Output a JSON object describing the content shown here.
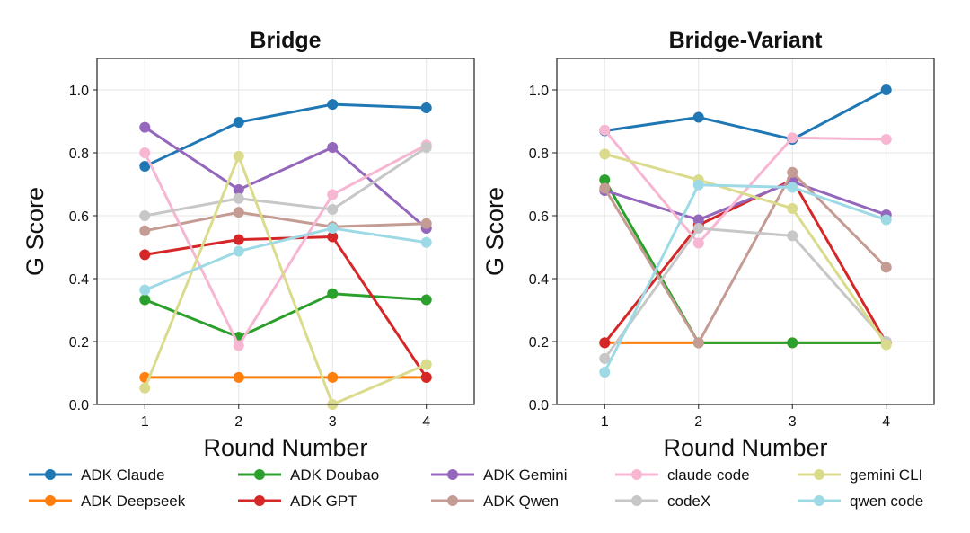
{
  "chart_data": [
    {
      "type": "line",
      "title": "Bridge",
      "xlabel": "Round Number",
      "ylabel": "G Score",
      "x": [
        1,
        2,
        3,
        4
      ],
      "xticks": [
        "1",
        "2",
        "3",
        "4"
      ],
      "yticks": [
        "0.0",
        "0.2",
        "0.4",
        "0.6",
        "0.8",
        "1.0"
      ],
      "xlim": [
        0.49,
        4.51
      ],
      "ylim": [
        0,
        1.1
      ],
      "grid": true,
      "series": [
        {
          "name": "ADK Claude",
          "color": "#1f77b4",
          "values": [
            0.757,
            0.897,
            0.954,
            0.943
          ]
        },
        {
          "name": "ADK Deepseek",
          "color": "#ff7f0e",
          "values": [
            0.086,
            0.086,
            0.086,
            0.086
          ]
        },
        {
          "name": "ADK Doubao",
          "color": "#2ca02c",
          "values": [
            0.333,
            0.214,
            0.352,
            0.333
          ]
        },
        {
          "name": "ADK GPT",
          "color": "#d62728",
          "values": [
            0.476,
            0.524,
            0.533,
            0.086
          ]
        },
        {
          "name": "ADK Gemini",
          "color": "#9467bd",
          "values": [
            0.881,
            0.683,
            0.817,
            0.56
          ]
        },
        {
          "name": "ADK Qwen",
          "color": "#c49c94",
          "values": [
            0.552,
            0.611,
            0.565,
            0.575
          ]
        },
        {
          "name": "claude code",
          "color": "#f7b6d2",
          "values": [
            0.8,
            0.187,
            0.667,
            0.825
          ]
        },
        {
          "name": "codeX",
          "color": "#c7c7c7",
          "values": [
            0.6,
            0.655,
            0.62,
            0.817
          ]
        },
        {
          "name": "gemini CLI",
          "color": "#dbdb8d",
          "values": [
            0.052,
            0.789,
            0.0,
            0.127
          ]
        },
        {
          "name": "qwen code",
          "color": "#9edae5",
          "values": [
            0.364,
            0.487,
            0.56,
            0.515
          ]
        }
      ]
    },
    {
      "type": "line",
      "title": "Bridge-Variant",
      "xlabel": "Round Number",
      "ylabel": "G Score",
      "x": [
        1,
        2,
        3,
        4
      ],
      "xticks": [
        "1",
        "2",
        "3",
        "4"
      ],
      "yticks": [
        "0.0",
        "0.2",
        "0.4",
        "0.6",
        "0.8",
        "1.0"
      ],
      "xlim": [
        0.49,
        4.51
      ],
      "ylim": [
        0,
        1.1
      ],
      "grid": true,
      "series": [
        {
          "name": "ADK Claude",
          "color": "#1f77b4",
          "values": [
            0.87,
            0.913,
            0.843,
            1.0
          ]
        },
        {
          "name": "ADK Deepseek",
          "color": "#ff7f0e",
          "values": [
            0.196,
            0.196,
            0.196,
            0.196
          ]
        },
        {
          "name": "ADK Doubao",
          "color": "#2ca02c",
          "values": [
            0.714,
            0.196,
            0.196,
            0.196
          ]
        },
        {
          "name": "ADK GPT",
          "color": "#d62728",
          "values": [
            0.196,
            0.57,
            0.714,
            0.196
          ]
        },
        {
          "name": "ADK Gemini",
          "color": "#9467bd",
          "values": [
            0.68,
            0.587,
            0.708,
            0.603
          ]
        },
        {
          "name": "ADK Qwen",
          "color": "#c49c94",
          "values": [
            0.687,
            0.196,
            0.738,
            0.436
          ]
        },
        {
          "name": "claude code",
          "color": "#f7b6d2",
          "values": [
            0.872,
            0.513,
            0.848,
            0.843
          ]
        },
        {
          "name": "codeX",
          "color": "#c7c7c7",
          "values": [
            0.146,
            0.56,
            0.536,
            0.2
          ]
        },
        {
          "name": "gemini CLI",
          "color": "#dbdb8d",
          "values": [
            0.796,
            0.714,
            0.623,
            0.19
          ]
        },
        {
          "name": "qwen code",
          "color": "#9edae5",
          "values": [
            0.103,
            0.698,
            0.69,
            0.587
          ]
        }
      ]
    }
  ],
  "legend": {
    "placement": "bottom",
    "columns": 5,
    "entries": [
      "ADK Claude",
      "ADK Deepseek",
      "ADK Doubao",
      "ADK GPT",
      "ADK Gemini",
      "ADK Qwen",
      "claude code",
      "codeX",
      "gemini CLI",
      "qwen code"
    ]
  }
}
